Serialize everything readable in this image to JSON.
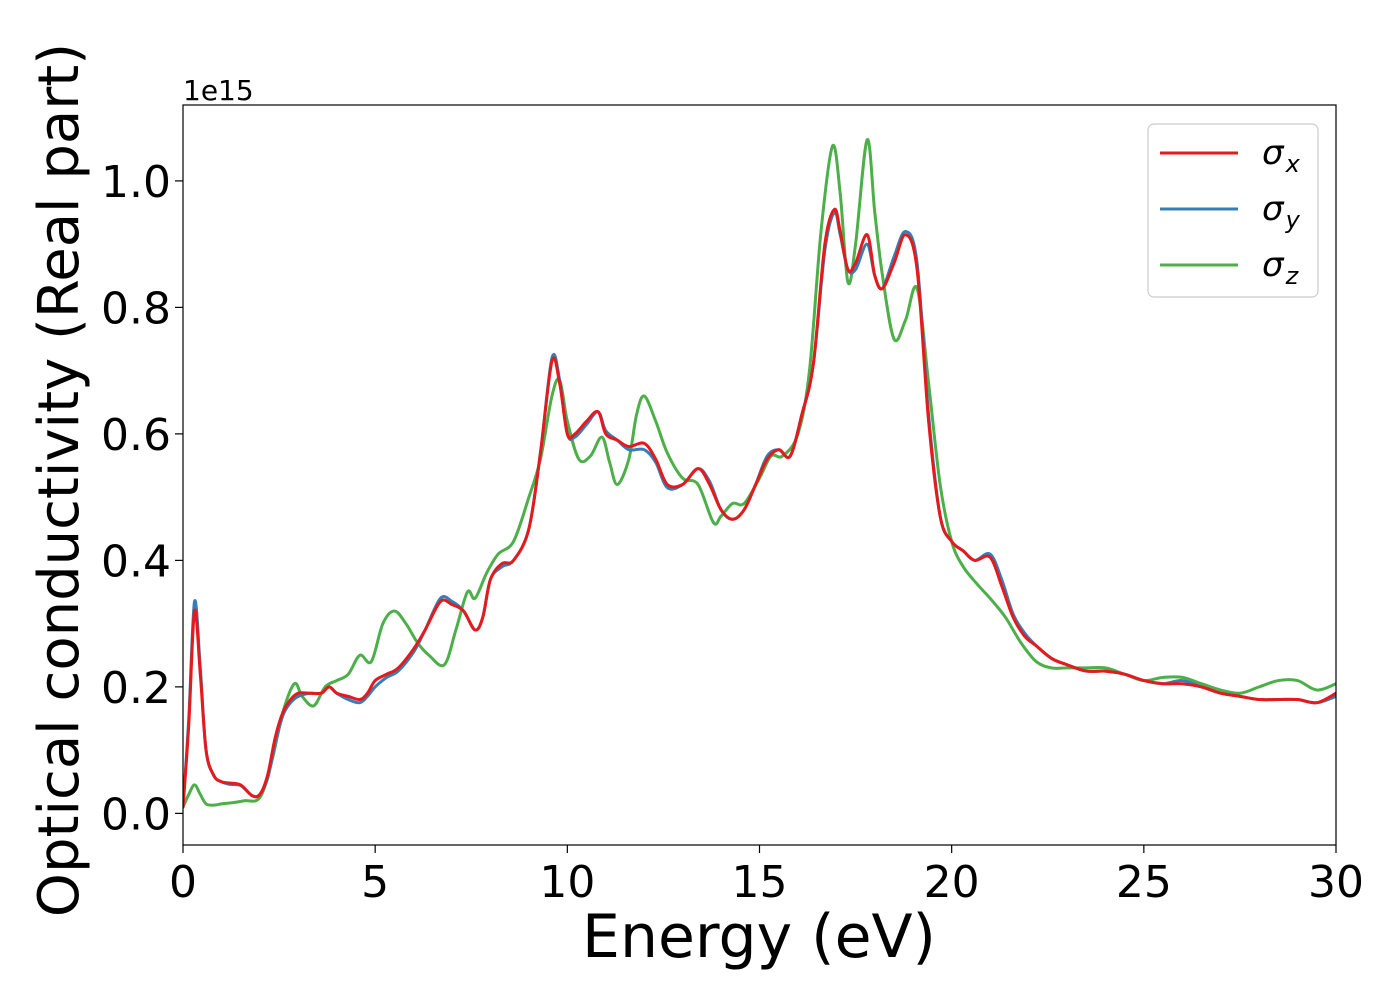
{
  "chart_data": {
    "type": "line",
    "xlabel": "Energy (eV)",
    "ylabel": "Optical conductivity (Real part)",
    "offset_label": "1e15",
    "y_scale_factor": 1000000000000000.0,
    "xlim": [
      0,
      30
    ],
    "ylim": [
      -0.05,
      1.12
    ],
    "xticks": [
      0,
      5,
      10,
      15,
      20,
      25,
      30
    ],
    "xtick_labels": [
      "0",
      "5",
      "10",
      "15",
      "20",
      "25",
      "30"
    ],
    "yticks": [
      0.0,
      0.2,
      0.4,
      0.6,
      0.8,
      1.0
    ],
    "ytick_labels": [
      "0.0",
      "0.2",
      "0.4",
      "0.6",
      "0.8",
      "1.0"
    ],
    "grid": false,
    "legend_position": "top-right",
    "series": [
      {
        "name": "σx",
        "name_base": "σ",
        "name_sub": "x",
        "color": "#e41a1c",
        "x": [
          0,
          0.15,
          0.3,
          0.45,
          0.6,
          0.8,
          1.0,
          1.2,
          1.5,
          1.8,
          2.0,
          2.2,
          2.4,
          2.6,
          2.8,
          3.0,
          3.3,
          3.6,
          3.8,
          4.0,
          4.3,
          4.6,
          4.8,
          5.0,
          5.3,
          5.6,
          6.0,
          6.3,
          6.7,
          7.0,
          7.3,
          7.6,
          7.8,
          8.0,
          8.3,
          8.6,
          9.0,
          9.3,
          9.6,
          9.8,
          10.0,
          10.2,
          10.5,
          10.8,
          11.0,
          11.3,
          11.6,
          12.0,
          12.3,
          12.6,
          13.0,
          13.4,
          13.7,
          14.0,
          14.3,
          14.6,
          14.9,
          15.2,
          15.5,
          15.8,
          16.1,
          16.4,
          16.7,
          16.95,
          17.1,
          17.3,
          17.5,
          17.8,
          18.0,
          18.2,
          18.5,
          18.8,
          19.1,
          19.4,
          19.7,
          20.0,
          20.3,
          20.6,
          21.0,
          21.3,
          21.6,
          21.9,
          22.2,
          22.6,
          23.0,
          23.5,
          24.0,
          24.5,
          25.0,
          25.5,
          26.0,
          26.5,
          27.0,
          27.5,
          28.0,
          28.5,
          29.0,
          29.5,
          30.0
        ],
        "y": [
          0.01,
          0.14,
          0.32,
          0.22,
          0.1,
          0.06,
          0.05,
          0.048,
          0.045,
          0.028,
          0.03,
          0.06,
          0.12,
          0.16,
          0.18,
          0.19,
          0.19,
          0.19,
          0.2,
          0.19,
          0.185,
          0.18,
          0.19,
          0.21,
          0.22,
          0.23,
          0.26,
          0.29,
          0.335,
          0.33,
          0.32,
          0.29,
          0.31,
          0.37,
          0.395,
          0.4,
          0.45,
          0.57,
          0.715,
          0.68,
          0.6,
          0.6,
          0.62,
          0.635,
          0.6,
          0.59,
          0.58,
          0.585,
          0.56,
          0.52,
          0.52,
          0.545,
          0.52,
          0.48,
          0.465,
          0.48,
          0.52,
          0.56,
          0.575,
          0.565,
          0.63,
          0.71,
          0.9,
          0.955,
          0.92,
          0.86,
          0.87,
          0.915,
          0.85,
          0.83,
          0.87,
          0.915,
          0.86,
          0.62,
          0.47,
          0.43,
          0.415,
          0.4,
          0.405,
          0.36,
          0.31,
          0.28,
          0.265,
          0.245,
          0.235,
          0.225,
          0.225,
          0.22,
          0.21,
          0.205,
          0.205,
          0.2,
          0.19,
          0.185,
          0.18,
          0.18,
          0.18,
          0.175,
          0.19
        ]
      },
      {
        "name": "σy",
        "name_base": "σ",
        "name_sub": "y",
        "color": "#377eb8",
        "x": [
          0,
          0.15,
          0.3,
          0.45,
          0.6,
          0.8,
          1.0,
          1.2,
          1.5,
          1.8,
          2.0,
          2.2,
          2.4,
          2.6,
          2.8,
          3.0,
          3.3,
          3.6,
          3.8,
          4.0,
          4.3,
          4.6,
          4.8,
          5.0,
          5.3,
          5.6,
          6.0,
          6.3,
          6.7,
          7.0,
          7.3,
          7.6,
          7.8,
          8.0,
          8.3,
          8.6,
          9.0,
          9.3,
          9.6,
          9.8,
          10.0,
          10.2,
          10.5,
          10.8,
          11.0,
          11.3,
          11.6,
          12.0,
          12.3,
          12.6,
          13.0,
          13.4,
          13.7,
          14.0,
          14.3,
          14.6,
          14.9,
          15.2,
          15.5,
          15.8,
          16.1,
          16.4,
          16.7,
          16.95,
          17.1,
          17.3,
          17.5,
          17.8,
          18.0,
          18.2,
          18.5,
          18.8,
          19.1,
          19.4,
          19.7,
          20.0,
          20.3,
          20.6,
          21.0,
          21.3,
          21.6,
          21.9,
          22.2,
          22.6,
          23.0,
          23.5,
          24.0,
          24.5,
          25.0,
          25.5,
          26.0,
          26.5,
          27.0,
          27.5,
          28.0,
          28.5,
          29.0,
          29.5,
          30.0
        ],
        "y": [
          0.01,
          0.15,
          0.335,
          0.23,
          0.1,
          0.06,
          0.05,
          0.046,
          0.044,
          0.028,
          0.03,
          0.055,
          0.11,
          0.155,
          0.175,
          0.185,
          0.19,
          0.19,
          0.2,
          0.19,
          0.18,
          0.175,
          0.185,
          0.2,
          0.215,
          0.225,
          0.255,
          0.29,
          0.34,
          0.335,
          0.32,
          0.29,
          0.31,
          0.37,
          0.39,
          0.4,
          0.45,
          0.57,
          0.72,
          0.685,
          0.6,
          0.595,
          0.615,
          0.635,
          0.605,
          0.59,
          0.575,
          0.575,
          0.555,
          0.515,
          0.52,
          0.545,
          0.525,
          0.48,
          0.465,
          0.48,
          0.52,
          0.565,
          0.575,
          0.565,
          0.63,
          0.71,
          0.89,
          0.95,
          0.915,
          0.86,
          0.86,
          0.9,
          0.85,
          0.83,
          0.88,
          0.92,
          0.87,
          0.63,
          0.47,
          0.43,
          0.415,
          0.4,
          0.41,
          0.37,
          0.315,
          0.285,
          0.265,
          0.245,
          0.235,
          0.225,
          0.225,
          0.22,
          0.21,
          0.205,
          0.21,
          0.2,
          0.19,
          0.185,
          0.18,
          0.18,
          0.18,
          0.175,
          0.185
        ]
      },
      {
        "name": "σz",
        "name_base": "σ",
        "name_sub": "z",
        "color": "#4daf4a",
        "x": [
          0,
          0.15,
          0.3,
          0.45,
          0.6,
          0.8,
          1.0,
          1.3,
          1.6,
          2.0,
          2.3,
          2.6,
          2.9,
          3.1,
          3.4,
          3.7,
          4.0,
          4.3,
          4.6,
          4.9,
          5.2,
          5.5,
          5.8,
          6.1,
          6.4,
          6.8,
          7.1,
          7.4,
          7.6,
          7.9,
          8.2,
          8.6,
          9.0,
          9.3,
          9.6,
          9.8,
          10.0,
          10.3,
          10.6,
          10.9,
          11.1,
          11.3,
          11.6,
          11.8,
          12.0,
          12.3,
          12.6,
          13.0,
          13.4,
          13.8,
          14.0,
          14.3,
          14.6,
          15.0,
          15.3,
          15.6,
          16.0,
          16.3,
          16.6,
          16.9,
          17.1,
          17.3,
          17.5,
          17.8,
          18.0,
          18.2,
          18.5,
          18.8,
          19.1,
          19.4,
          19.7,
          20.0,
          20.3,
          20.7,
          21.0,
          21.4,
          21.8,
          22.2,
          22.6,
          23.0,
          23.5,
          24.0,
          24.5,
          25.0,
          25.5,
          26.0,
          26.5,
          27.0,
          27.5,
          28.0,
          28.5,
          29.0,
          29.5,
          30.0
        ],
        "y": [
          0.01,
          0.03,
          0.045,
          0.03,
          0.015,
          0.013,
          0.015,
          0.017,
          0.02,
          0.025,
          0.08,
          0.16,
          0.205,
          0.185,
          0.17,
          0.2,
          0.21,
          0.22,
          0.25,
          0.24,
          0.3,
          0.32,
          0.3,
          0.27,
          0.25,
          0.235,
          0.29,
          0.35,
          0.34,
          0.38,
          0.41,
          0.43,
          0.5,
          0.56,
          0.66,
          0.685,
          0.62,
          0.56,
          0.565,
          0.595,
          0.555,
          0.52,
          0.56,
          0.63,
          0.66,
          0.62,
          0.57,
          0.53,
          0.52,
          0.46,
          0.47,
          0.49,
          0.49,
          0.53,
          0.565,
          0.565,
          0.6,
          0.7,
          0.92,
          1.055,
          0.98,
          0.84,
          0.9,
          1.065,
          0.95,
          0.85,
          0.75,
          0.78,
          0.83,
          0.68,
          0.52,
          0.43,
          0.39,
          0.36,
          0.34,
          0.31,
          0.27,
          0.24,
          0.23,
          0.23,
          0.23,
          0.23,
          0.22,
          0.21,
          0.215,
          0.215,
          0.205,
          0.195,
          0.19,
          0.2,
          0.21,
          0.21,
          0.195,
          0.205
        ]
      }
    ]
  }
}
